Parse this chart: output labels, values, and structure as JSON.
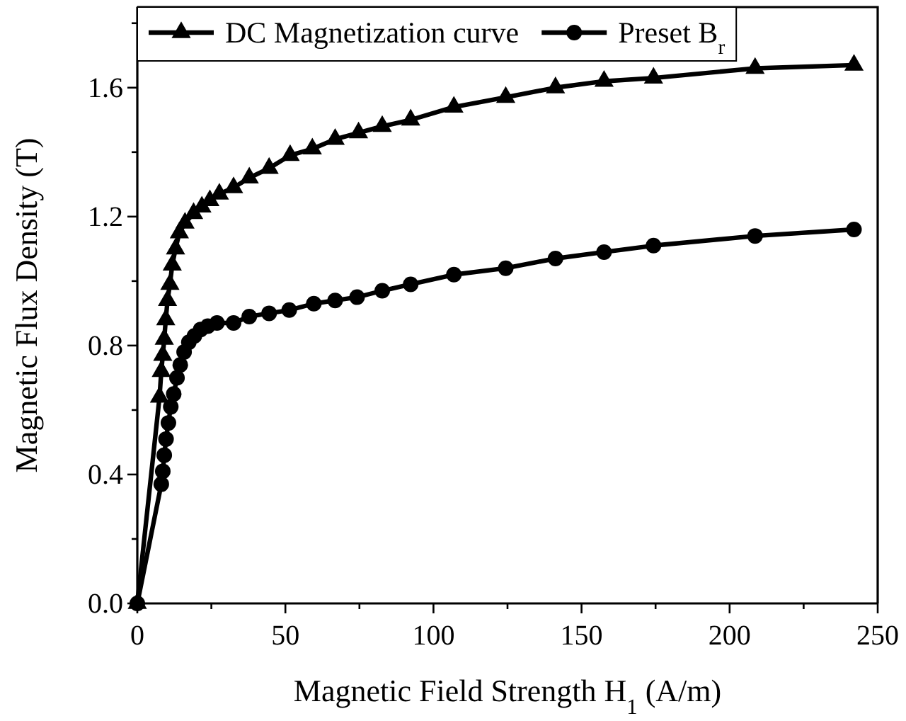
{
  "chart_data": {
    "type": "line",
    "xlabel": "Magnetic Field Strength H$_{1}$ (A/m)",
    "ylabel": "Magnetic Flux Density (T)",
    "xlim": [
      0,
      250
    ],
    "xticks": [
      0,
      {
        "value": 25,
        "label": null
      },
      50,
      {
        "value": 75,
        "label": null
      },
      100,
      {
        "value": 125,
        "label": null
      },
      150,
      {
        "value": 175,
        "label": null
      },
      200,
      {
        "value": 225,
        "label": null
      },
      250
    ],
    "ylim": [
      0,
      1.85
    ],
    "yticks": [
      {
        "value": 0,
        "label": "0.0"
      },
      {
        "value": 0.2,
        "label": null
      },
      {
        "value": 0.4,
        "label": "0.4"
      },
      {
        "value": 0.6,
        "label": null
      },
      {
        "value": 0.8,
        "label": "0.8"
      },
      {
        "value": 1.0,
        "label": null
      },
      {
        "value": 1.2,
        "label": "1.2"
      },
      {
        "value": 1.4,
        "label": null
      },
      {
        "value": 1.6,
        "label": "1.6"
      },
      {
        "value": 1.8,
        "label": null
      }
    ],
    "grid": false,
    "legend": "top",
    "line_style": "solid",
    "series": [
      {
        "name": "DC Magnetization curve",
        "color": "#000000",
        "marker": "triangle",
        "x": [
          0,
          7.5,
          8.1,
          8.6,
          9.1,
          9.6,
          10.2,
          11.0,
          11.8,
          12.9,
          14.2,
          16.1,
          19.0,
          21.8,
          24.5,
          27.7,
          32.5,
          37.8,
          44.5,
          51.6,
          59.1,
          66.8,
          74.7,
          82.7,
          92.3,
          106.9,
          124.4,
          141.2,
          157.6,
          174.3,
          208.6,
          242.0
        ],
        "values": [
          0,
          0.64,
          0.72,
          0.77,
          0.82,
          0.88,
          0.94,
          0.99,
          1.05,
          1.1,
          1.15,
          1.18,
          1.21,
          1.23,
          1.25,
          1.27,
          1.29,
          1.32,
          1.35,
          1.39,
          1.41,
          1.44,
          1.46,
          1.48,
          1.5,
          1.54,
          1.57,
          1.6,
          1.62,
          1.63,
          1.66,
          1.67
        ]
      },
      {
        "name": "Preset B$_{r}$",
        "color": "#000000",
        "marker": "circle",
        "x": [
          0,
          8.1,
          8.6,
          9.1,
          9.7,
          10.5,
          11.3,
          12.3,
          13.4,
          14.5,
          15.8,
          17.4,
          19.3,
          21.4,
          23.8,
          26.9,
          32.5,
          37.8,
          44.5,
          51.3,
          59.6,
          66.8,
          74.2,
          82.7,
          92.3,
          106.9,
          124.4,
          141.2,
          157.6,
          174.3,
          208.6,
          242.0
        ],
        "values": [
          0,
          0.37,
          0.41,
          0.46,
          0.51,
          0.56,
          0.61,
          0.65,
          0.7,
          0.74,
          0.78,
          0.81,
          0.83,
          0.85,
          0.86,
          0.87,
          0.87,
          0.89,
          0.9,
          0.91,
          0.93,
          0.94,
          0.95,
          0.97,
          0.99,
          1.02,
          1.04,
          1.07,
          1.09,
          1.11,
          1.14,
          1.16
        ]
      }
    ]
  }
}
